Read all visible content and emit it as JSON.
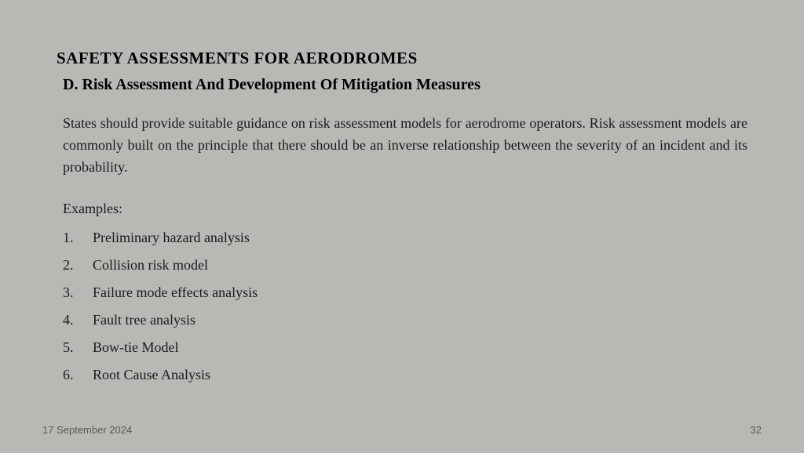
{
  "slide": {
    "main_title": "SAFETY ASSESSMENTS FOR  AERODROMES",
    "subtitle": "D. Risk Assessment And Development Of Mitigation Measures",
    "body_text": "States should provide suitable guidance on risk assessment models for aerodrome operators. Risk assessment models are commonly built on the principle that there should be an inverse relationship between the severity of an incident and its probability.",
    "examples_label": "Examples:",
    "examples": [
      {
        "num": "1.",
        "text": "Preliminary hazard analysis"
      },
      {
        "num": "2.",
        "text": "Collision risk model"
      },
      {
        "num": "3.",
        "text": "Failure mode effects analysis"
      },
      {
        "num": "4.",
        "text": "Fault tree analysis"
      },
      {
        "num": "5.",
        "text": "Bow-tie Model"
      },
      {
        "num": "6.",
        "text": "Root Cause Analysis"
      }
    ]
  },
  "footer": {
    "date": "17 September 2024",
    "page_number": "32"
  },
  "style": {
    "background_color": "#b8b8b4",
    "text_color": "#1a1a1a",
    "title_color": "#000000",
    "footer_color": "#5a5a56",
    "title_fontsize": 21,
    "subtitle_fontsize": 20,
    "body_fontsize": 18,
    "footer_fontsize": 13
  }
}
